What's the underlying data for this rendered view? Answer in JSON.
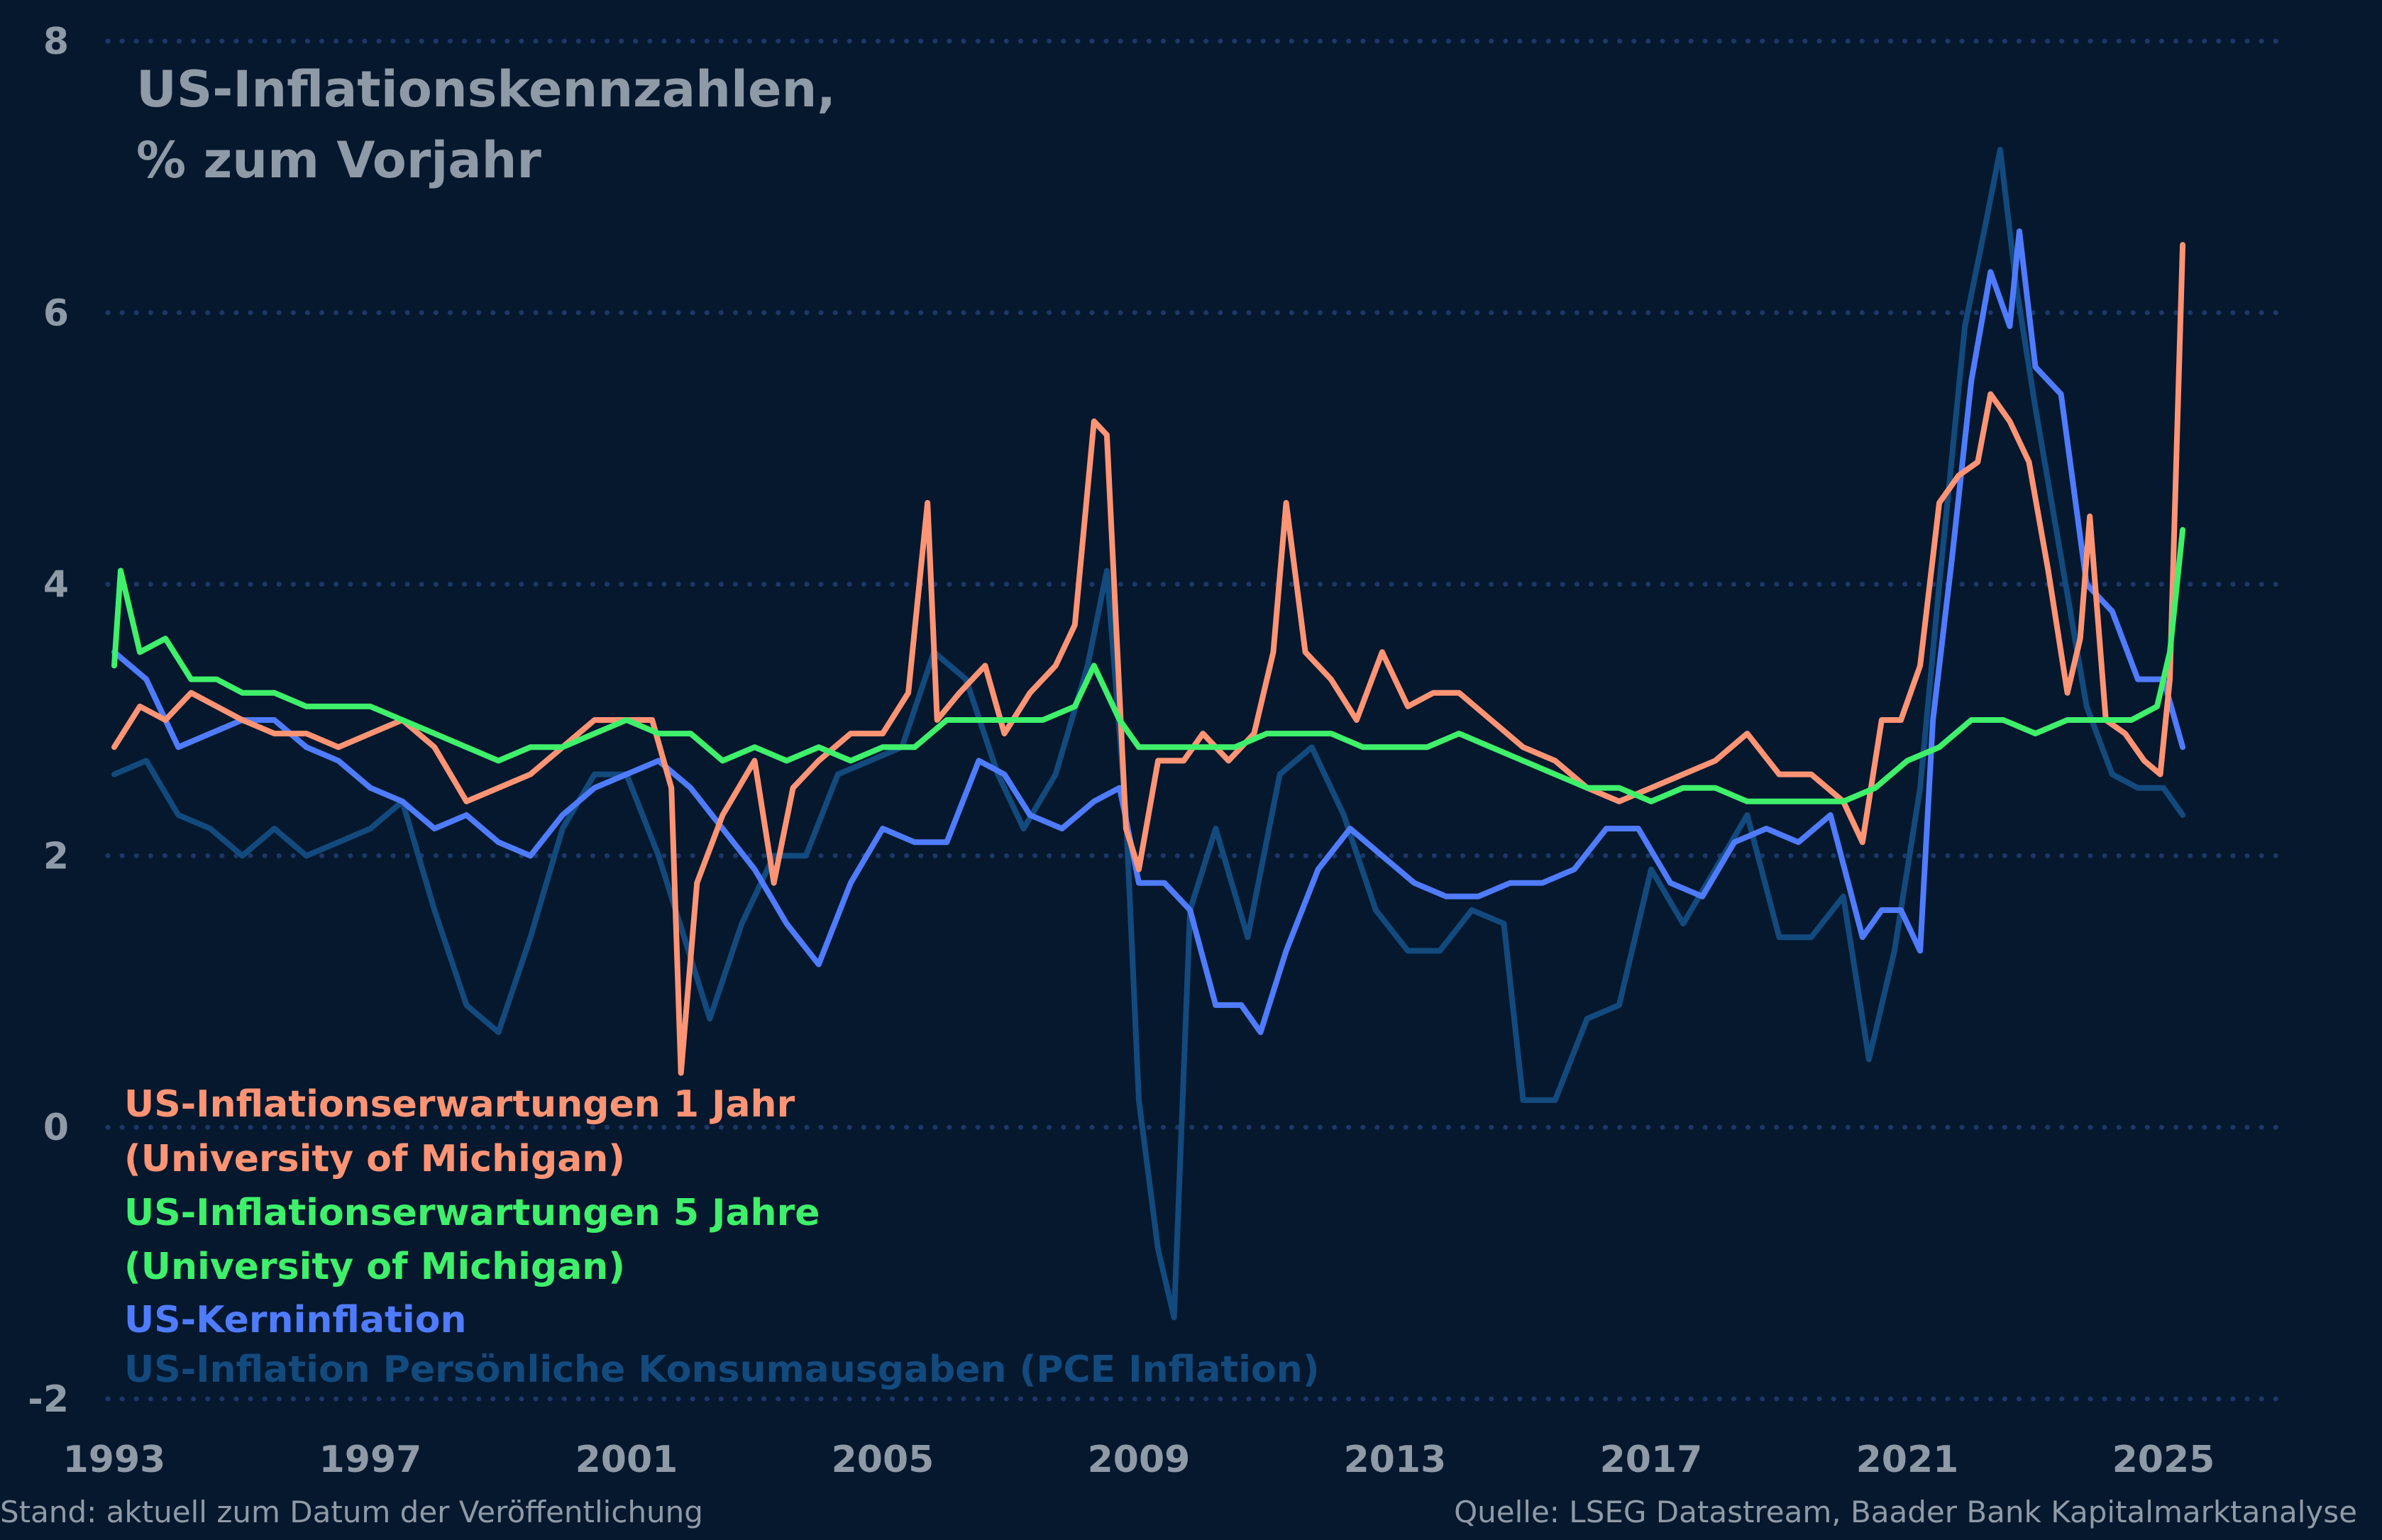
{
  "chart_data": {
    "type": "line",
    "title": "US-Inflationskennzahlen,",
    "subtitle": "% zum Vorjahr",
    "xlabel": "",
    "ylabel": "",
    "xlim": [
      1993,
      2027.5
    ],
    "ylim": [
      -2,
      8
    ],
    "x_ticks": [
      "1993",
      "1997",
      "2001",
      "2005",
      "2009",
      "2013",
      "2017",
      "2021",
      "2025"
    ],
    "y_ticks": [
      "-2",
      "0",
      "2",
      "4",
      "6",
      "8"
    ],
    "grid": "horizontal dotted",
    "legend": "bottom-left",
    "footer_left": "Stand: aktuell zum Datum der Veröffentlichung",
    "footer_right": "Quelle: LSEG Datastream, Baader Bank Kapitalmarktanalyse",
    "series": [
      {
        "name": "US-Inflation Persönliche Konsumausgaben (PCE Inflation)",
        "legend_lines": [
          "US-Inflation Persönliche Konsumausgaben (PCE Inflation)"
        ],
        "color": "#134a7e",
        "x": [
          1993,
          1993.5,
          1994,
          1994.5,
          1995,
          1995.5,
          1996,
          1996.5,
          1997,
          1997.5,
          1998,
          1998.5,
          1999,
          1999.5,
          2000,
          2000.5,
          2001,
          2001.5,
          2001.9,
          2002.3,
          2002.8,
          2003.3,
          2003.8,
          2004.3,
          2004.8,
          2005.3,
          2005.8,
          2006.3,
          2006.8,
          2007.2,
          2007.7,
          2008.2,
          2008.5,
          2008.8,
          2009.0,
          2009.3,
          2009.55,
          2009.8,
          2010.2,
          2010.7,
          2011.2,
          2011.7,
          2012.2,
          2012.7,
          2013.2,
          2013.7,
          2014.2,
          2014.7,
          2015.0,
          2015.5,
          2016.0,
          2016.5,
          2017.0,
          2017.5,
          2018.0,
          2018.5,
          2019.0,
          2019.5,
          2020.0,
          2020.4,
          2020.8,
          2021.2,
          2021.5,
          2021.9,
          2022.2,
          2022.45,
          2022.7,
          2023.0,
          2023.4,
          2023.8,
          2024.2,
          2024.6,
          2025.0,
          2025.3
        ],
        "y": [
          2.6,
          2.7,
          2.3,
          2.2,
          2.0,
          2.2,
          2.0,
          2.1,
          2.2,
          2.4,
          1.6,
          0.9,
          0.7,
          1.4,
          2.2,
          2.6,
          2.6,
          2.0,
          1.4,
          0.8,
          1.5,
          2.0,
          2.0,
          2.6,
          2.7,
          2.8,
          3.5,
          3.3,
          2.6,
          2.2,
          2.6,
          3.4,
          4.1,
          2.3,
          0.2,
          -0.9,
          -1.4,
          1.6,
          2.2,
          1.4,
          2.6,
          2.8,
          2.3,
          1.6,
          1.3,
          1.3,
          1.6,
          1.5,
          0.2,
          0.2,
          0.8,
          0.9,
          1.9,
          1.5,
          1.9,
          2.3,
          1.4,
          1.4,
          1.7,
          0.5,
          1.3,
          2.5,
          4.0,
          5.9,
          6.6,
          7.2,
          6.2,
          5.3,
          4.2,
          3.1,
          2.6,
          2.5,
          2.5,
          2.3
        ]
      },
      {
        "name": "US-Kerninflation",
        "legend_lines": [
          "US-Kerninflation"
        ],
        "color": "#4f7cff",
        "x": [
          1993,
          1993.5,
          1994,
          1994.5,
          1995,
          1995.5,
          1996,
          1996.5,
          1997,
          1997.5,
          1998,
          1998.5,
          1999,
          1999.5,
          2000,
          2000.5,
          2001,
          2001.5,
          2002,
          2002.5,
          2003,
          2003.5,
          2004,
          2004.5,
          2005,
          2005.5,
          2006,
          2006.5,
          2006.9,
          2007.3,
          2007.8,
          2008.3,
          2008.7,
          2009.0,
          2009.4,
          2009.8,
          2010.2,
          2010.6,
          2010.9,
          2011.3,
          2011.8,
          2012.3,
          2012.8,
          2013.3,
          2013.8,
          2014.3,
          2014.8,
          2015.3,
          2015.8,
          2016.3,
          2016.8,
          2017.3,
          2017.8,
          2018.3,
          2018.8,
          2019.3,
          2019.8,
          2020.3,
          2020.6,
          2020.9,
          2021.2,
          2021.4,
          2021.7,
          2022.0,
          2022.3,
          2022.6,
          2022.75,
          2023.0,
          2023.4,
          2023.8,
          2024.2,
          2024.6,
          2025.0,
          2025.3
        ],
        "y": [
          3.5,
          3.3,
          2.8,
          2.9,
          3.0,
          3.0,
          2.8,
          2.7,
          2.5,
          2.4,
          2.2,
          2.3,
          2.1,
          2.0,
          2.3,
          2.5,
          2.6,
          2.7,
          2.5,
          2.2,
          1.9,
          1.5,
          1.2,
          1.8,
          2.2,
          2.1,
          2.1,
          2.7,
          2.6,
          2.3,
          2.2,
          2.4,
          2.5,
          1.8,
          1.8,
          1.6,
          0.9,
          0.9,
          0.7,
          1.3,
          1.9,
          2.2,
          2.0,
          1.8,
          1.7,
          1.7,
          1.8,
          1.8,
          1.9,
          2.2,
          2.2,
          1.8,
          1.7,
          2.1,
          2.2,
          2.1,
          2.3,
          1.4,
          1.6,
          1.6,
          1.3,
          3.0,
          4.2,
          5.5,
          6.3,
          5.9,
          6.6,
          5.6,
          5.4,
          4.0,
          3.8,
          3.3,
          3.3,
          2.8
        ]
      },
      {
        "name": "US-Inflationserwartungen 1 Jahr (University of Michigan)",
        "legend_lines": [
          "US-Inflationserwartungen 1 Jahr",
          "(University of Michigan)"
        ],
        "color": "#ff9474",
        "x": [
          1993,
          1993.4,
          1993.8,
          1994.2,
          1994.6,
          1995,
          1995.5,
          1996,
          1996.5,
          1997,
          1997.5,
          1998,
          1998.5,
          1999,
          1999.5,
          2000,
          2000.5,
          2001,
          2001.4,
          2001.7,
          2001.85,
          2002.1,
          2002.5,
          2003,
          2003.3,
          2003.6,
          2004,
          2004.5,
          2005,
          2005.4,
          2005.7,
          2005.85,
          2006.2,
          2006.6,
          2006.9,
          2007.3,
          2007.7,
          2008.0,
          2008.3,
          2008.5,
          2008.8,
          2009.0,
          2009.3,
          2009.7,
          2010.0,
          2010.4,
          2010.8,
          2011.1,
          2011.3,
          2011.6,
          2012.0,
          2012.4,
          2012.8,
          2013.2,
          2013.6,
          2014.0,
          2014.5,
          2015.0,
          2015.5,
          2016.0,
          2016.5,
          2017.0,
          2017.5,
          2018.0,
          2018.5,
          2019.0,
          2019.5,
          2020.0,
          2020.3,
          2020.6,
          2020.9,
          2021.2,
          2021.5,
          2021.8,
          2022.1,
          2022.3,
          2022.6,
          2022.9,
          2023.2,
          2023.5,
          2023.7,
          2023.85,
          2024.1,
          2024.4,
          2024.7,
          2024.95,
          2025.1,
          2025.3
        ],
        "y": [
          2.8,
          3.1,
          3.0,
          3.2,
          3.1,
          3.0,
          2.9,
          2.9,
          2.8,
          2.9,
          3.0,
          2.8,
          2.4,
          2.5,
          2.6,
          2.8,
          3.0,
          3.0,
          3.0,
          2.5,
          0.4,
          1.8,
          2.3,
          2.7,
          1.8,
          2.5,
          2.7,
          2.9,
          2.9,
          3.2,
          4.6,
          3.0,
          3.2,
          3.4,
          2.9,
          3.2,
          3.4,
          3.7,
          5.2,
          5.1,
          2.2,
          1.9,
          2.7,
          2.7,
          2.9,
          2.7,
          2.9,
          3.5,
          4.6,
          3.5,
          3.3,
          3.0,
          3.5,
          3.1,
          3.2,
          3.2,
          3.0,
          2.8,
          2.7,
          2.5,
          2.4,
          2.5,
          2.6,
          2.7,
          2.9,
          2.6,
          2.6,
          2.4,
          2.1,
          3.0,
          3.0,
          3.4,
          4.6,
          4.8,
          4.9,
          5.4,
          5.2,
          4.9,
          4.1,
          3.2,
          3.6,
          4.5,
          3.0,
          2.9,
          2.7,
          2.6,
          3.3,
          6.5
        ]
      },
      {
        "name": "US-Inflationserwartungen 5 Jahre (University of Michigan)",
        "legend_lines": [
          "US-Inflationserwartungen 5 Jahre",
          "(University of Michigan)"
        ],
        "color": "#3ff06a",
        "x": [
          1993,
          1993.1,
          1993.4,
          1993.8,
          1994.2,
          1994.6,
          1995,
          1995.5,
          1996,
          1996.5,
          1997,
          1997.5,
          1998,
          1998.5,
          1999,
          1999.5,
          2000,
          2000.5,
          2001,
          2001.5,
          2002,
          2002.5,
          2003,
          2003.5,
          2004,
          2004.5,
          2005,
          2005.5,
          2006,
          2006.5,
          2007,
          2007.5,
          2008,
          2008.3,
          2008.7,
          2009,
          2009.5,
          2010,
          2010.5,
          2011,
          2011.5,
          2012,
          2012.5,
          2013,
          2013.5,
          2014,
          2014.5,
          2015,
          2015.5,
          2016,
          2016.5,
          2017,
          2017.5,
          2018,
          2018.5,
          2019,
          2019.5,
          2020,
          2020.5,
          2021,
          2021.5,
          2022,
          2022.5,
          2023,
          2023.5,
          2024,
          2024.5,
          2024.9,
          2025.1,
          2025.3
        ],
        "y": [
          3.4,
          4.1,
          3.5,
          3.6,
          3.3,
          3.3,
          3.2,
          3.2,
          3.1,
          3.1,
          3.1,
          3.0,
          2.9,
          2.8,
          2.7,
          2.8,
          2.8,
          2.9,
          3.0,
          2.9,
          2.9,
          2.7,
          2.8,
          2.7,
          2.8,
          2.7,
          2.8,
          2.8,
          3.0,
          3.0,
          3.0,
          3.0,
          3.1,
          3.4,
          3.0,
          2.8,
          2.8,
          2.8,
          2.8,
          2.9,
          2.9,
          2.9,
          2.8,
          2.8,
          2.8,
          2.9,
          2.8,
          2.7,
          2.6,
          2.5,
          2.5,
          2.4,
          2.5,
          2.5,
          2.4,
          2.4,
          2.4,
          2.4,
          2.5,
          2.7,
          2.8,
          3.0,
          3.0,
          2.9,
          3.0,
          3.0,
          3.0,
          3.1,
          3.5,
          4.4
        ]
      }
    ]
  }
}
